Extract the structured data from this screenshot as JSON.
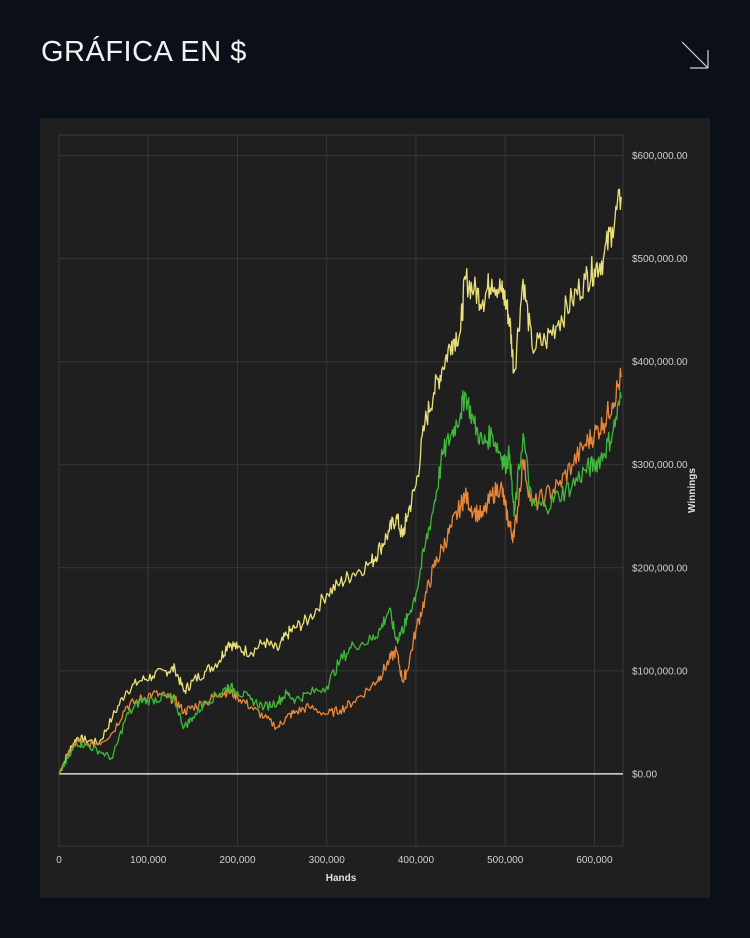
{
  "header": {
    "title": "GRÁFICA EN $",
    "icon": "arrow-down-right-icon"
  },
  "chart_data": {
    "type": "line",
    "title": "",
    "xlabel": "Hands",
    "ylabel": "Winnings",
    "xlim": [
      0,
      632000
    ],
    "ylim": [
      -70000,
      620000
    ],
    "x_ticks": [
      "0",
      "100,000",
      "200,000",
      "300,000",
      "400,000",
      "500,000",
      "600,000"
    ],
    "y_ticks": [
      "$0.00",
      "$100,000.00",
      "$200,000.00",
      "$300,000.00",
      "$400,000.00",
      "$500,000.00",
      "$600,000.00"
    ],
    "grid": true,
    "background": "#1f1f1f",
    "series": [
      {
        "color": "#e9e07a",
        "x": [
          0,
          10000,
          20000,
          30000,
          45000,
          60000,
          75000,
          90000,
          105000,
          120000,
          130000,
          140000,
          150000,
          165000,
          180000,
          190000,
          200000,
          215000,
          230000,
          245000,
          255000,
          265000,
          280000,
          300000,
          315000,
          330000,
          350000,
          360000,
          370000,
          378000,
          385000,
          390000,
          400000,
          410000,
          420000,
          430000,
          440000,
          450000,
          455000,
          465000,
          475000,
          485000,
          495000,
          500000,
          505000,
          510000,
          520000,
          530000,
          545000,
          560000,
          575000,
          590000,
          600000,
          610000,
          620000,
          630000
        ],
        "y": [
          0,
          20000,
          35000,
          33000,
          30000,
          55000,
          80000,
          90000,
          95000,
          100000,
          102000,
          80000,
          90000,
          100000,
          110000,
          128000,
          122000,
          118000,
          128000,
          120000,
          135000,
          142000,
          150000,
          175000,
          185000,
          195000,
          205000,
          220000,
          235000,
          250000,
          230000,
          250000,
          280000,
          340000,
          370000,
          395000,
          420000,
          430000,
          480000,
          470000,
          460000,
          480000,
          470000,
          460000,
          440000,
          390000,
          480000,
          415000,
          420000,
          440000,
          460000,
          480000,
          490000,
          500000,
          530000,
          560000
        ]
      },
      {
        "color": "#e8873a",
        "x": [
          0,
          10000,
          20000,
          30000,
          45000,
          60000,
          75000,
          90000,
          105000,
          120000,
          130000,
          140000,
          150000,
          165000,
          180000,
          190000,
          200000,
          215000,
          230000,
          245000,
          255000,
          265000,
          280000,
          300000,
          315000,
          330000,
          350000,
          360000,
          370000,
          378000,
          385000,
          390000,
          400000,
          410000,
          420000,
          430000,
          440000,
          450000,
          455000,
          465000,
          475000,
          485000,
          495000,
          500000,
          505000,
          510000,
          520000,
          530000,
          545000,
          560000,
          575000,
          590000,
          600000,
          610000,
          620000,
          630000
        ],
        "y": [
          0,
          18000,
          32000,
          28000,
          30000,
          40000,
          65000,
          72000,
          78000,
          75000,
          72000,
          60000,
          65000,
          70000,
          78000,
          80000,
          75000,
          65000,
          55000,
          45000,
          55000,
          60000,
          65000,
          58000,
          62000,
          70000,
          85000,
          95000,
          110000,
          120000,
          90000,
          100000,
          140000,
          170000,
          200000,
          220000,
          240000,
          260000,
          270000,
          255000,
          250000,
          270000,
          280000,
          260000,
          240000,
          230000,
          305000,
          260000,
          270000,
          280000,
          300000,
          320000,
          330000,
          340000,
          360000,
          385000
        ]
      },
      {
        "color": "#3fb93a",
        "x": [
          0,
          10000,
          20000,
          30000,
          45000,
          60000,
          75000,
          90000,
          105000,
          120000,
          130000,
          140000,
          150000,
          165000,
          180000,
          190000,
          200000,
          215000,
          230000,
          245000,
          255000,
          265000,
          280000,
          300000,
          315000,
          330000,
          350000,
          360000,
          370000,
          378000,
          385000,
          390000,
          400000,
          410000,
          420000,
          430000,
          440000,
          450000,
          455000,
          465000,
          475000,
          485000,
          495000,
          500000,
          505000,
          510000,
          520000,
          530000,
          545000,
          560000,
          575000,
          590000,
          600000,
          610000,
          620000,
          630000
        ],
        "y": [
          0,
          15000,
          30000,
          28000,
          22000,
          15000,
          55000,
          70000,
          72000,
          75000,
          70000,
          45000,
          55000,
          70000,
          78000,
          85000,
          80000,
          72000,
          65000,
          70000,
          78000,
          72000,
          78000,
          85000,
          110000,
          125000,
          130000,
          140000,
          160000,
          130000,
          140000,
          150000,
          175000,
          220000,
          260000,
          310000,
          330000,
          350000,
          370000,
          340000,
          320000,
          330000,
          310000,
          300000,
          310000,
          250000,
          330000,
          260000,
          260000,
          270000,
          280000,
          295000,
          300000,
          310000,
          330000,
          365000
        ]
      }
    ],
    "zero_line_color": "#ffffff"
  }
}
